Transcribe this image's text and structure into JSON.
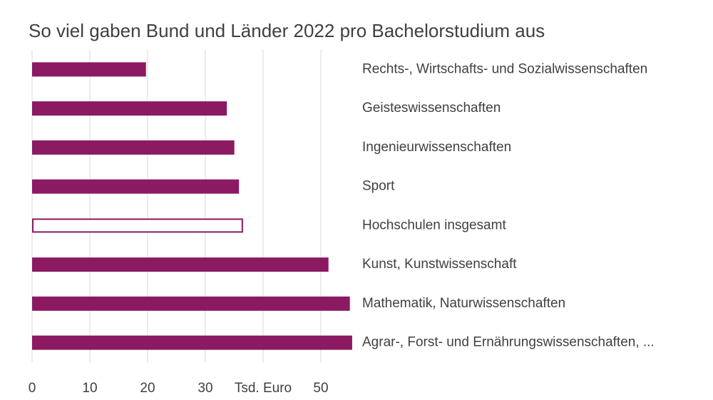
{
  "chart_data": {
    "type": "hbar",
    "title": "So viel gaben Bund und Länder 2022 pro Bachelorstudium aus",
    "categories": [
      "Rechts-, Wirtschafts- und Sozialwissenschaften",
      "Geisteswissenschaften",
      "Ingenieurwissenschaften",
      "Sport",
      "Hochschulen insgesamt",
      "Kunst, Kunstwissenschaft",
      "Mathematik, Naturwissenschaften",
      "Agrar-, Forst- und Ernährungswissenschaften, ..."
    ],
    "values": [
      19.6,
      33.6,
      34.9,
      35.7,
      36.4,
      51.2,
      54.9,
      55.3
    ],
    "fill_colors": [
      "#8b1a62",
      "#8b1a62",
      "#8b1a62",
      "#8b1a62",
      "#ffffff",
      "#8b1a62",
      "#8b1a62",
      "#8b1a62"
    ],
    "edge_color": "#8b1a62",
    "xlim": [
      0,
      56
    ],
    "xticks": [
      0,
      10,
      20,
      30,
      {
        "value": 40,
        "label": "Tsd. Euro"
      },
      50
    ],
    "grid": true
  }
}
